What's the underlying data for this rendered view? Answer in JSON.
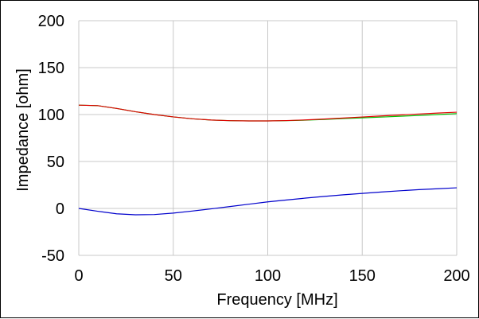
{
  "chart_data": {
    "type": "line",
    "xlabel": "Frequency [MHz]",
    "ylabel": "Impedance [ohm]",
    "xlim": [
      0,
      200
    ],
    "ylim": [
      -50,
      200
    ],
    "xticks": [
      0,
      50,
      100,
      150,
      200
    ],
    "yticks": [
      -50,
      0,
      50,
      100,
      150,
      200
    ],
    "grid": true,
    "series": [
      {
        "color": "#00c000",
        "x": [
          0,
          10,
          20,
          30,
          40,
          50,
          60,
          70,
          80,
          90,
          100,
          110,
          120,
          130,
          140,
          150,
          160,
          170,
          180,
          190,
          200
        ],
        "y": [
          110,
          109.5,
          106.5,
          103,
          100,
          97.5,
          95.5,
          94.2,
          93.5,
          93.2,
          93.2,
          93.5,
          94,
          94.8,
          95.7,
          96.5,
          97.3,
          98.2,
          99,
          100,
          101
        ]
      },
      {
        "color": "#e00000",
        "x": [
          0,
          10,
          20,
          30,
          40,
          50,
          60,
          70,
          80,
          90,
          100,
          110,
          120,
          130,
          140,
          150,
          160,
          170,
          180,
          190,
          200
        ],
        "y": [
          110,
          109.5,
          106.5,
          103,
          100,
          97.5,
          95.5,
          94.2,
          93.5,
          93.2,
          93.2,
          93.6,
          94.3,
          95.2,
          96.3,
          97.4,
          98.5,
          99.6,
          100.6,
          101.6,
          102.5
        ]
      },
      {
        "color": "#0000cc",
        "x": [
          0,
          10,
          20,
          30,
          40,
          50,
          60,
          70,
          80,
          90,
          100,
          110,
          120,
          130,
          140,
          150,
          160,
          170,
          180,
          190,
          200
        ],
        "y": [
          0,
          -3,
          -5.7,
          -6.8,
          -6.5,
          -5,
          -2.8,
          -0.5,
          2,
          4.5,
          7,
          9,
          11,
          12.8,
          14.5,
          16,
          17.5,
          18.8,
          20,
          21,
          22
        ]
      }
    ]
  }
}
